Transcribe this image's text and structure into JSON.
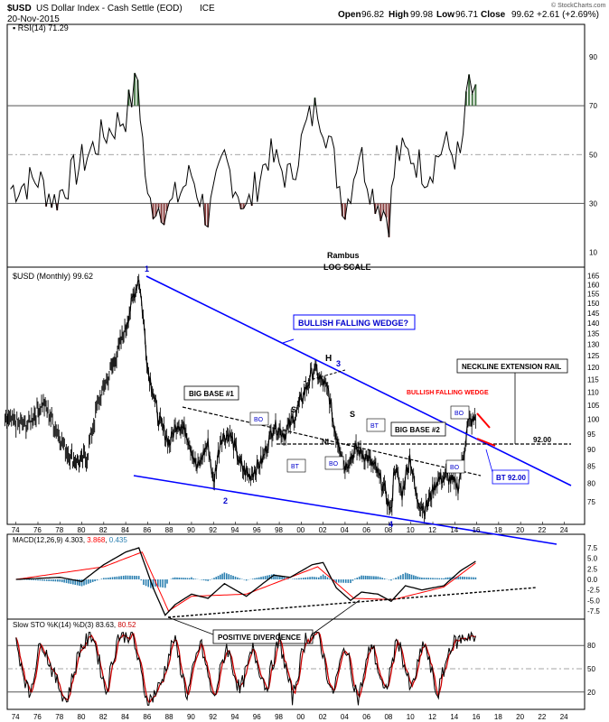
{
  "header": {
    "symbol": "$USD",
    "name": "US Dollar Index - Cash Settle (EOD)",
    "exchange": "ICE",
    "date": "20-Nov-2015",
    "open_label": "Open",
    "open": "96.82",
    "high_label": "High",
    "high": "99.98",
    "low_label": "Low",
    "low": "96.71",
    "close_label": "Close",
    "close": "99.62",
    "change": "+2.61 (+2.69%)",
    "watermark": "© StockCharts.com"
  },
  "colors": {
    "wedge_line": "#0000ff",
    "price": "#000000",
    "macd_signal": "#ff0000",
    "histogram": "#2a7fb0",
    "rsi_overbought_fill": "#4a7a4a",
    "rsi_oversold_fill": "#8a4040",
    "stoch_d": "#cc0000",
    "label_box_text": "#0000cc",
    "red_wedge": "#ff0000"
  },
  "rsi_panel": {
    "legend": "RSI(14) 71.29",
    "y_ticks": [
      "90",
      "70",
      "50",
      "30",
      "10"
    ],
    "y_tick_values": [
      90,
      70,
      50,
      30,
      10
    ],
    "ylim": [
      5,
      100
    ],
    "ref_lines": [
      70,
      50,
      30
    ],
    "footer_1": "Rambus",
    "footer_2": "LOG SCALE"
  },
  "price_panel": {
    "legend": "$USD (Monthly) 99.62",
    "y_ticks": [
      "165",
      "160",
      "155",
      "150",
      "145",
      "140",
      "135",
      "130",
      "125",
      "120",
      "115",
      "110",
      "105",
      "100",
      "95",
      "90",
      "85",
      "80",
      "75"
    ],
    "y_tick_values": [
      165,
      160,
      155,
      150,
      145,
      140,
      135,
      130,
      125,
      120,
      115,
      110,
      105,
      100,
      95,
      90,
      85,
      80,
      75
    ],
    "scale": "log",
    "ylim": [
      70,
      168
    ],
    "annotations": {
      "wedge_title": "BULLISH FALLING WEDGE?",
      "big_base_1": "BIG BASE #1",
      "big_base_2": "BIG BASE #2",
      "neckline_rail": "NECKLINE EXTENSION RAIL",
      "bullish_falling_wedge_small": "BULLISH FALLING WEDGE",
      "bt_92": "BT 92.00",
      "level_92": "92.00",
      "h": "H",
      "s_left": "S",
      "s_right": "S",
      "nl": "NL",
      "bo": "BO",
      "bt": "BT",
      "p1": "1",
      "p2": "2",
      "p3": "3",
      "p4": "4"
    }
  },
  "macd_panel": {
    "legend_label": "MACD(12,26,9)",
    "macd_value": "4.303",
    "signal_value": "3.868",
    "hist_value": "0.435",
    "y_ticks": [
      "7.5",
      "5.0",
      "2.5",
      "0.0",
      "-2.5",
      "-5.0",
      "-7.5"
    ],
    "y_tick_values": [
      7.5,
      5.0,
      2.5,
      0.0,
      -2.5,
      -5.0,
      -7.5
    ],
    "ylim": [
      -9,
      9
    ],
    "divergence_label": "POSITIVE DIVERGENCE"
  },
  "stoch_panel": {
    "legend_label": "Slow STO %K(14) %D(3)",
    "k_value": "83.63",
    "d_value": "80.52",
    "y_ticks": [
      "80",
      "50",
      "20"
    ],
    "y_tick_values": [
      80,
      50,
      20
    ],
    "ylim": [
      0,
      100
    ]
  },
  "x_axis": {
    "labels": [
      "74",
      "76",
      "78",
      "80",
      "82",
      "84",
      "86",
      "88",
      "90",
      "92",
      "94",
      "96",
      "98",
      "00",
      "02",
      "04",
      "06",
      "08",
      "10",
      "12",
      "14",
      "16",
      "18",
      "20",
      "22",
      "24"
    ],
    "years": [
      1974,
      1976,
      1978,
      1980,
      1982,
      1984,
      1986,
      1988,
      1990,
      1992,
      1994,
      1996,
      1998,
      2000,
      2002,
      2004,
      2006,
      2008,
      2010,
      2012,
      2014,
      2016,
      2018,
      2020,
      2022,
      2024
    ]
  },
  "chart_data": {
    "type": "line",
    "title": "$USD US Dollar Index - Cash Settle (EOD) ICE",
    "xlabel": "",
    "ylabel": "",
    "x_unit": "year",
    "y_scale": "log",
    "series": [
      {
        "name": "$USD (Monthly)",
        "x": [
          1973.0,
          1975.0,
          1976.5,
          1978.5,
          1979.5,
          1980.5,
          1981.5,
          1983.0,
          1984.0,
          1985.0,
          1985.2,
          1986.0,
          1987.0,
          1988.0,
          1988.7,
          1989.5,
          1990.5,
          1991.5,
          1992.0,
          1992.7,
          1993.5,
          1994.5,
          1995.3,
          1996.5,
          1997.5,
          1998.5,
          1999.5,
          2000.5,
          2001.2,
          2001.6,
          2002.5,
          2003.0,
          2004.0,
          2005.0,
          2005.9,
          2006.8,
          2007.5,
          2008.2,
          2008.5,
          2009.2,
          2009.9,
          2010.5,
          2011.3,
          2012.4,
          2013.2,
          2014.3,
          2014.8,
          2015.2,
          2015.9
        ],
        "values": [
          100,
          98,
          106,
          90,
          86,
          88,
          106,
          123,
          138,
          160,
          164,
          120,
          100,
          92,
          99,
          96,
          84,
          92,
          80,
          94,
          95,
          85,
          82,
          87,
          98,
          95,
          102,
          112,
          120,
          116,
          110,
          97,
          85,
          90,
          88,
          84,
          79,
          72,
          85,
          77,
          88,
          76,
          73,
          81,
          82,
          79,
          88,
          99,
          99.62
        ]
      },
      {
        "name": "RSI(14)",
        "x": [
          1973.5,
          1976,
          1977.5,
          1980,
          1982,
          1984,
          1985.1,
          1986,
          1988,
          1990,
          1991.5,
          1993,
          1995,
          1997,
          1999,
          2000.5,
          2001.5,
          2002.5,
          2004,
          2005.3,
          2006.5,
          2008,
          2008.7,
          2010,
          2011.5,
          2013,
          2014.5,
          2015.3,
          2015.9
        ],
        "values": [
          36,
          40,
          31,
          47,
          58,
          66,
          81,
          30,
          28,
          42,
          24,
          48,
          27,
          50,
          40,
          62,
          70,
          57,
          27,
          52,
          34,
          24,
          50,
          50,
          42,
          54,
          48,
          80,
          71.29
        ]
      },
      {
        "name": "MACD(12,26,9)",
        "x": [
          1974,
          1978,
          1980,
          1982,
          1984,
          1985.2,
          1986.5,
          1987.6,
          1988.5,
          1990,
          1991.5,
          1993,
          1995,
          1997.5,
          1999,
          2001,
          2002,
          2003.2,
          2004.5,
          2005.5,
          2007,
          2008.2,
          2009.5,
          2011,
          2013,
          2014.5,
          2015.9
        ],
        "values": [
          0,
          0.5,
          -0.5,
          3.5,
          6.5,
          7.5,
          -2,
          -8.5,
          -6,
          -3.5,
          -4.5,
          -1,
          -4,
          1,
          0.5,
          3.5,
          4.0,
          -2,
          -5,
          -3,
          -3.5,
          -5.2,
          -1.5,
          -2.5,
          -1.5,
          2,
          4.303
        ]
      },
      {
        "name": "MACD Signal",
        "x": [
          1974,
          1982,
          1985.5,
          1987.9,
          1990,
          1995,
          2001.5,
          2004.8,
          2008.4,
          2013,
          2015.9
        ],
        "values": [
          0,
          3.0,
          6.5,
          -7.5,
          -4,
          -3.5,
          3.0,
          -4.5,
          -4.8,
          -1.8,
          3.868
        ]
      },
      {
        "name": "Slow STO %K(14)",
        "x": [
          1974,
          1975.2,
          1976.3,
          1977.5,
          1978.6,
          1979.8,
          1981,
          1982.2,
          1983.3,
          1984.6,
          1986,
          1987.2,
          1988.4,
          1989.6,
          1990.8,
          1992,
          1993.2,
          1994.4,
          1995.6,
          1996.8,
          1998,
          1999.2,
          2000.4,
          2001.6,
          2002.8,
          2004,
          2005.2,
          2006.4,
          2007.6,
          2008.8,
          2010,
          2011.2,
          2012.4,
          2013.6,
          2014.8,
          2015.5,
          2015.9
        ],
        "values": [
          85,
          15,
          88,
          40,
          8,
          75,
          95,
          20,
          92,
          95,
          5,
          30,
          90,
          15,
          85,
          10,
          80,
          20,
          75,
          25,
          88,
          12,
          90,
          95,
          15,
          80,
          10,
          85,
          15,
          90,
          20,
          85,
          15,
          80,
          90,
          95,
          83.63
        ]
      }
    ],
    "annotated_levels": [
      92.0
    ],
    "labelled_points": [
      "1",
      "2",
      "3",
      "4",
      "H",
      "S",
      "S",
      "NL"
    ]
  }
}
